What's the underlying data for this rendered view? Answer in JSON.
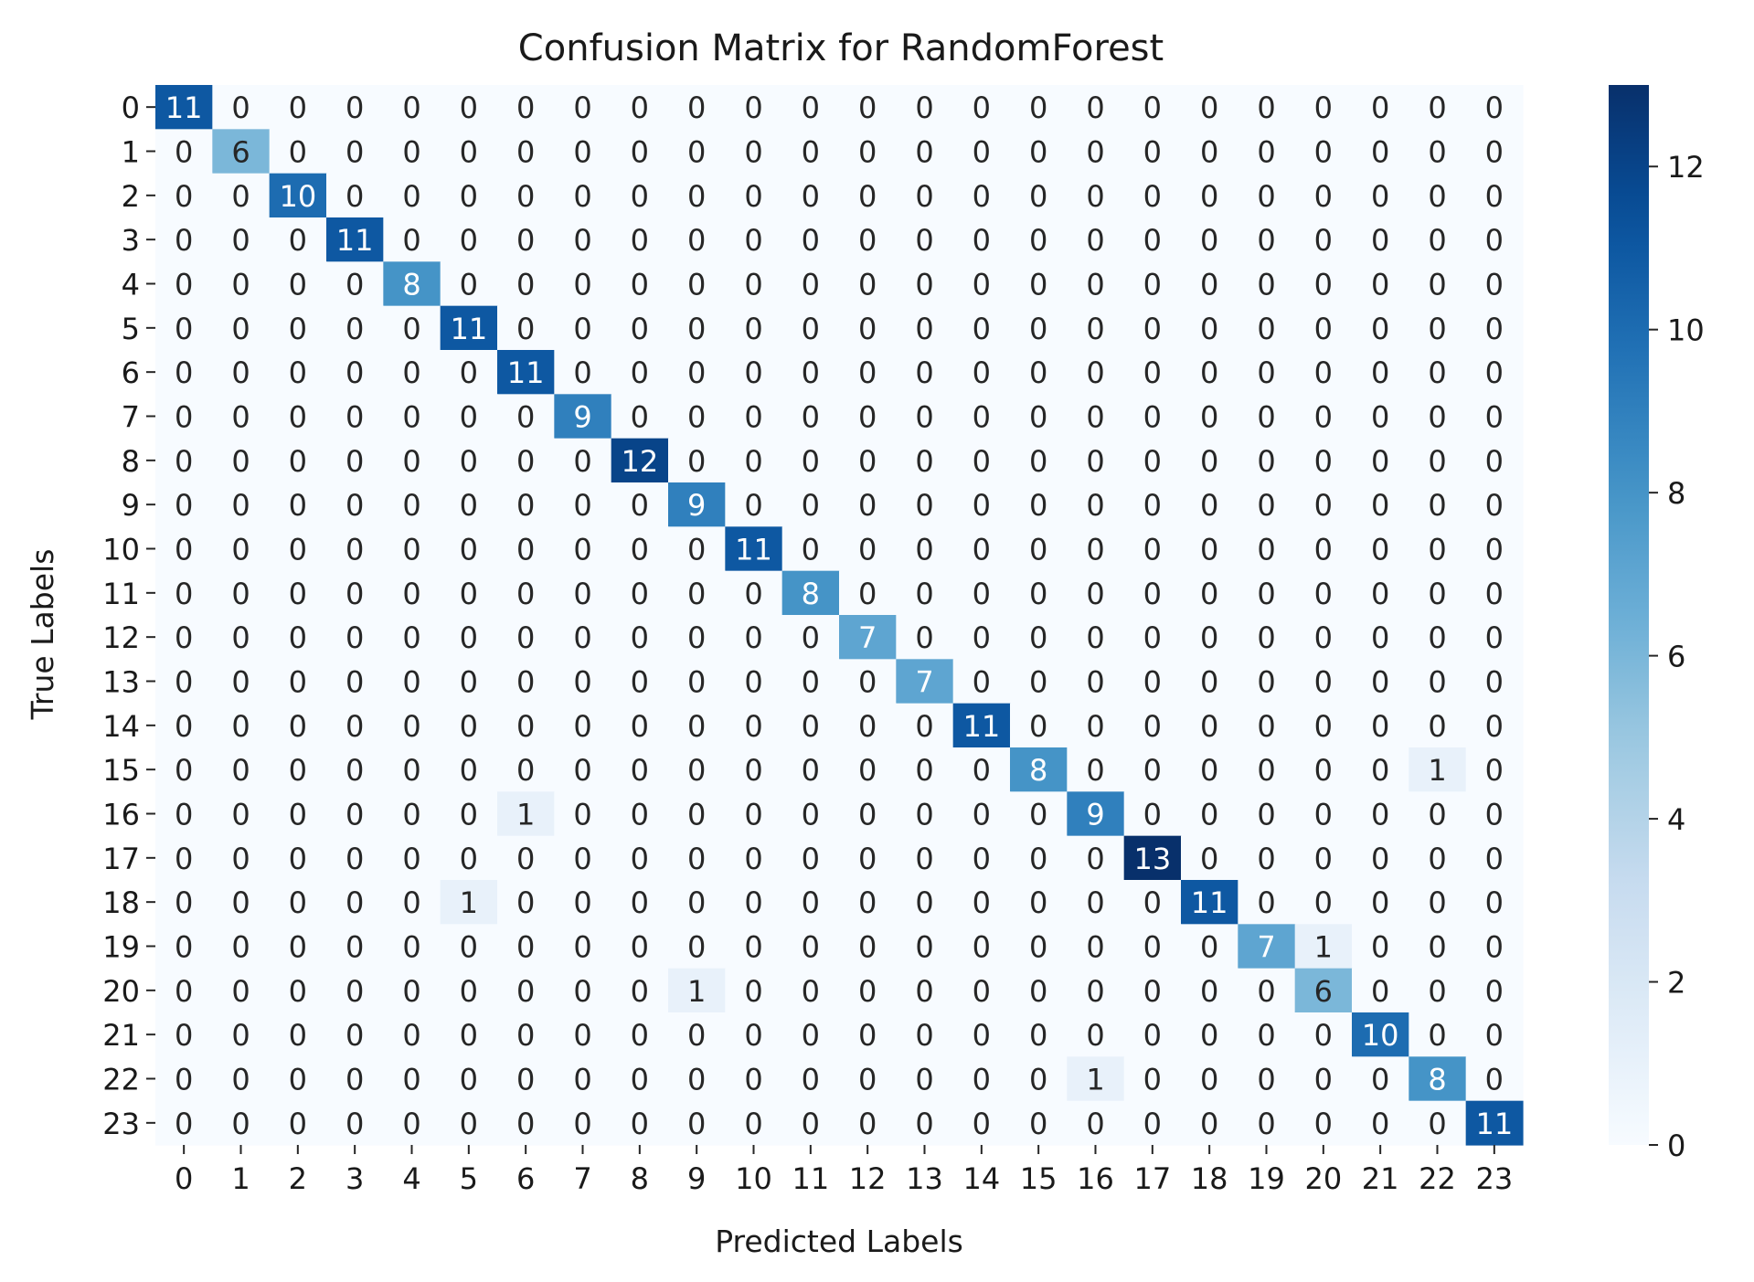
{
  "chart_data": {
    "type": "heatmap",
    "title": "Confusion Matrix for RandomForest",
    "xlabel": "Predicted Labels",
    "ylabel": "True Labels",
    "x_categories": [
      "0",
      "1",
      "2",
      "3",
      "4",
      "5",
      "6",
      "7",
      "8",
      "9",
      "10",
      "11",
      "12",
      "13",
      "14",
      "15",
      "16",
      "17",
      "18",
      "19",
      "20",
      "21",
      "22",
      "23"
    ],
    "y_categories": [
      "0",
      "1",
      "2",
      "3",
      "4",
      "5",
      "6",
      "7",
      "8",
      "9",
      "10",
      "11",
      "12",
      "13",
      "14",
      "15",
      "16",
      "17",
      "18",
      "19",
      "20",
      "21",
      "22",
      "23"
    ],
    "matrix": [
      [
        11,
        0,
        0,
        0,
        0,
        0,
        0,
        0,
        0,
        0,
        0,
        0,
        0,
        0,
        0,
        0,
        0,
        0,
        0,
        0,
        0,
        0,
        0,
        0
      ],
      [
        0,
        6,
        0,
        0,
        0,
        0,
        0,
        0,
        0,
        0,
        0,
        0,
        0,
        0,
        0,
        0,
        0,
        0,
        0,
        0,
        0,
        0,
        0,
        0
      ],
      [
        0,
        0,
        10,
        0,
        0,
        0,
        0,
        0,
        0,
        0,
        0,
        0,
        0,
        0,
        0,
        0,
        0,
        0,
        0,
        0,
        0,
        0,
        0,
        0
      ],
      [
        0,
        0,
        0,
        11,
        0,
        0,
        0,
        0,
        0,
        0,
        0,
        0,
        0,
        0,
        0,
        0,
        0,
        0,
        0,
        0,
        0,
        0,
        0,
        0
      ],
      [
        0,
        0,
        0,
        0,
        8,
        0,
        0,
        0,
        0,
        0,
        0,
        0,
        0,
        0,
        0,
        0,
        0,
        0,
        0,
        0,
        0,
        0,
        0,
        0
      ],
      [
        0,
        0,
        0,
        0,
        0,
        11,
        0,
        0,
        0,
        0,
        0,
        0,
        0,
        0,
        0,
        0,
        0,
        0,
        0,
        0,
        0,
        0,
        0,
        0
      ],
      [
        0,
        0,
        0,
        0,
        0,
        0,
        11,
        0,
        0,
        0,
        0,
        0,
        0,
        0,
        0,
        0,
        0,
        0,
        0,
        0,
        0,
        0,
        0,
        0
      ],
      [
        0,
        0,
        0,
        0,
        0,
        0,
        0,
        9,
        0,
        0,
        0,
        0,
        0,
        0,
        0,
        0,
        0,
        0,
        0,
        0,
        0,
        0,
        0,
        0
      ],
      [
        0,
        0,
        0,
        0,
        0,
        0,
        0,
        0,
        12,
        0,
        0,
        0,
        0,
        0,
        0,
        0,
        0,
        0,
        0,
        0,
        0,
        0,
        0,
        0
      ],
      [
        0,
        0,
        0,
        0,
        0,
        0,
        0,
        0,
        0,
        9,
        0,
        0,
        0,
        0,
        0,
        0,
        0,
        0,
        0,
        0,
        0,
        0,
        0,
        0
      ],
      [
        0,
        0,
        0,
        0,
        0,
        0,
        0,
        0,
        0,
        0,
        11,
        0,
        0,
        0,
        0,
        0,
        0,
        0,
        0,
        0,
        0,
        0,
        0,
        0
      ],
      [
        0,
        0,
        0,
        0,
        0,
        0,
        0,
        0,
        0,
        0,
        0,
        8,
        0,
        0,
        0,
        0,
        0,
        0,
        0,
        0,
        0,
        0,
        0,
        0
      ],
      [
        0,
        0,
        0,
        0,
        0,
        0,
        0,
        0,
        0,
        0,
        0,
        0,
        7,
        0,
        0,
        0,
        0,
        0,
        0,
        0,
        0,
        0,
        0,
        0
      ],
      [
        0,
        0,
        0,
        0,
        0,
        0,
        0,
        0,
        0,
        0,
        0,
        0,
        0,
        7,
        0,
        0,
        0,
        0,
        0,
        0,
        0,
        0,
        0,
        0
      ],
      [
        0,
        0,
        0,
        0,
        0,
        0,
        0,
        0,
        0,
        0,
        0,
        0,
        0,
        0,
        11,
        0,
        0,
        0,
        0,
        0,
        0,
        0,
        0,
        0
      ],
      [
        0,
        0,
        0,
        0,
        0,
        0,
        0,
        0,
        0,
        0,
        0,
        0,
        0,
        0,
        0,
        8,
        0,
        0,
        0,
        0,
        0,
        0,
        1,
        0
      ],
      [
        0,
        0,
        0,
        0,
        0,
        0,
        1,
        0,
        0,
        0,
        0,
        0,
        0,
        0,
        0,
        0,
        9,
        0,
        0,
        0,
        0,
        0,
        0,
        0
      ],
      [
        0,
        0,
        0,
        0,
        0,
        0,
        0,
        0,
        0,
        0,
        0,
        0,
        0,
        0,
        0,
        0,
        0,
        13,
        0,
        0,
        0,
        0,
        0,
        0
      ],
      [
        0,
        0,
        0,
        0,
        0,
        1,
        0,
        0,
        0,
        0,
        0,
        0,
        0,
        0,
        0,
        0,
        0,
        0,
        11,
        0,
        0,
        0,
        0,
        0
      ],
      [
        0,
        0,
        0,
        0,
        0,
        0,
        0,
        0,
        0,
        0,
        0,
        0,
        0,
        0,
        0,
        0,
        0,
        0,
        0,
        7,
        1,
        0,
        0,
        0
      ],
      [
        0,
        0,
        0,
        0,
        0,
        0,
        0,
        0,
        0,
        1,
        0,
        0,
        0,
        0,
        0,
        0,
        0,
        0,
        0,
        0,
        6,
        0,
        0,
        0
      ],
      [
        0,
        0,
        0,
        0,
        0,
        0,
        0,
        0,
        0,
        0,
        0,
        0,
        0,
        0,
        0,
        0,
        0,
        0,
        0,
        0,
        0,
        10,
        0,
        0
      ],
      [
        0,
        0,
        0,
        0,
        0,
        0,
        0,
        0,
        0,
        0,
        0,
        0,
        0,
        0,
        0,
        0,
        1,
        0,
        0,
        0,
        0,
        0,
        8,
        0
      ],
      [
        0,
        0,
        0,
        0,
        0,
        0,
        0,
        0,
        0,
        0,
        0,
        0,
        0,
        0,
        0,
        0,
        0,
        0,
        0,
        0,
        0,
        0,
        0,
        11
      ]
    ],
    "colorbar": {
      "min": 0,
      "max": 13,
      "ticks": [
        0,
        2,
        4,
        6,
        8,
        10,
        12
      ]
    },
    "colormap": "Blues",
    "grid": false
  }
}
